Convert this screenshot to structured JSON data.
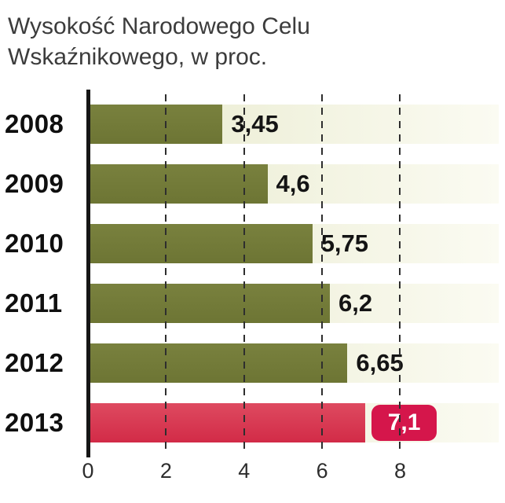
{
  "title": {
    "line1": "Wysokość Narodowego Celu",
    "line2": "Wskaźnikowego, w proc."
  },
  "chart_data": {
    "type": "bar",
    "orientation": "horizontal",
    "title": "Wysokość Narodowego Celu Wskaźnikowego, w proc.",
    "categories": [
      "2008",
      "2009",
      "2010",
      "2011",
      "2012",
      "2013"
    ],
    "values": [
      3.45,
      4.6,
      5.75,
      6.2,
      6.65,
      7.1
    ],
    "value_labels": [
      "3,45",
      "4,6",
      "5,75",
      "6,2",
      "6,65",
      "7,1"
    ],
    "xlim": [
      0,
      8
    ],
    "x_ticks": [
      0,
      2,
      4,
      6,
      8
    ],
    "grid": "dashed-vertical",
    "legend": "none",
    "bar_color": "#6d7534",
    "bar_color_light": "#79813e",
    "highlight_index": 5,
    "highlight_color": "#d22b47",
    "highlight_color_light": "#de4a60",
    "highlight_label_bg": "#d5164b",
    "highlight_label_color": "#ffffff"
  }
}
